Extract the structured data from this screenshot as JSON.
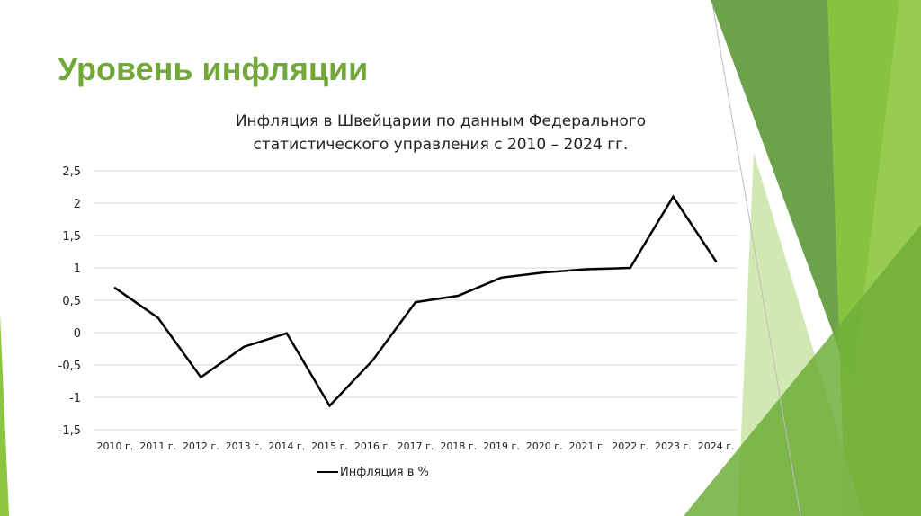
{
  "slide": {
    "title": "Уровень инфляции"
  },
  "colors": {
    "title": "#72a83a",
    "line": "#000000",
    "grid": "#d9d9d9",
    "decor_dark": "#5e9a3c",
    "decor_mid": "#8cc63e",
    "decor_light": "#c9e4a4"
  },
  "chart_data": {
    "type": "line",
    "title_lines": [
      "Инфляция в Швейцарии по данным Федерального",
      "статистического управления с 2010 – 2024 гг."
    ],
    "categories": [
      "2010 г.",
      "2011 г.",
      "2012 г.",
      "2013 г.",
      "2014 г.",
      "2015 г.",
      "2016 г.",
      "2017 г.",
      "2018 г.",
      "2019 г.",
      "2020 г.",
      "2021 г.",
      "2022 г.",
      "2023 г.",
      "2024 г."
    ],
    "series": [
      {
        "name": "Инфляция в %",
        "values": [
          0.69,
          0.23,
          -0.69,
          -0.22,
          -0.01,
          -1.13,
          -0.43,
          0.47,
          0.57,
          0.85,
          0.93,
          0.98,
          1.0,
          2.1,
          1.1
        ]
      }
    ],
    "y_ticks": [
      "2,5",
      "2",
      "1,5",
      "1",
      "0,5",
      "0",
      "-0,5",
      "-1",
      "-1,5"
    ],
    "ylim": [
      -1.5,
      2.5
    ],
    "grid": true,
    "legend_position": "bottom"
  }
}
